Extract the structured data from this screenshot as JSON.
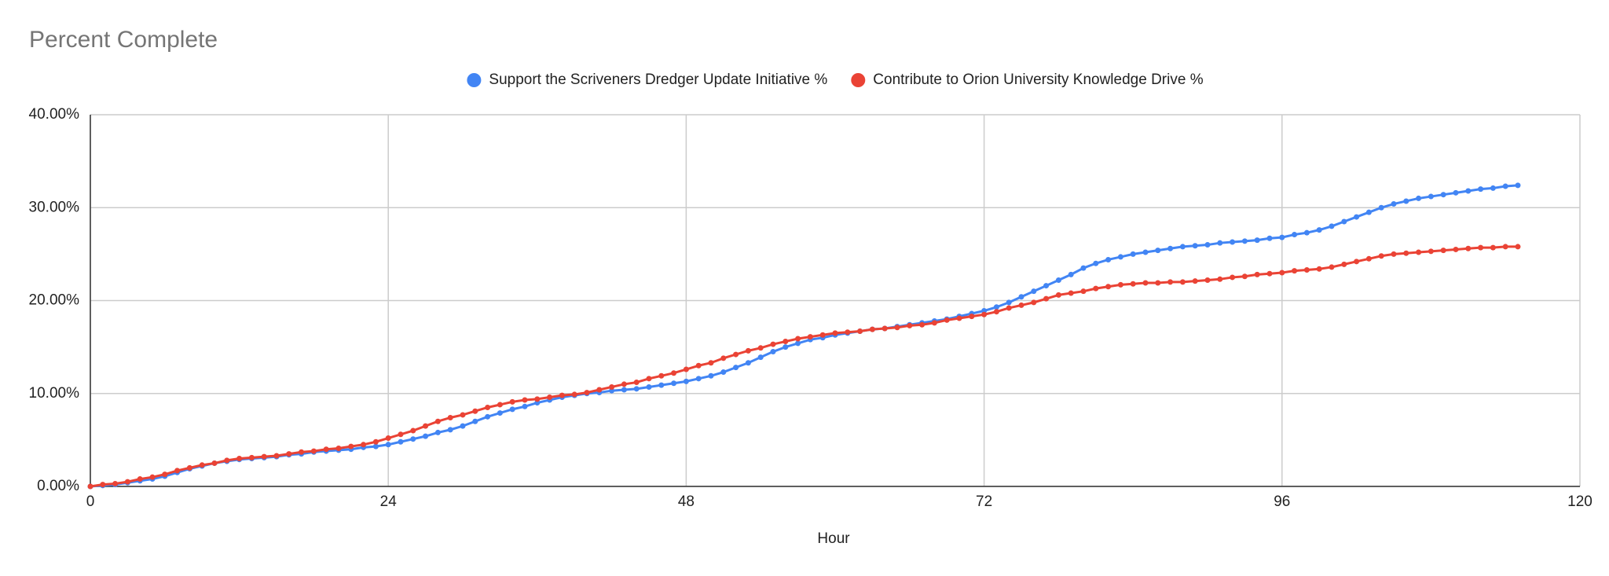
{
  "chart_data": {
    "type": "line",
    "title": "Percent Complete",
    "x_label": "Hour",
    "x": [
      0,
      1,
      2,
      3,
      4,
      5,
      6,
      7,
      8,
      9,
      10,
      11,
      12,
      13,
      14,
      15,
      16,
      17,
      18,
      19,
      20,
      21,
      22,
      23,
      24,
      25,
      26,
      27,
      28,
      29,
      30,
      31,
      32,
      33,
      34,
      35,
      36,
      37,
      38,
      39,
      40,
      41,
      42,
      43,
      44,
      45,
      46,
      47,
      48,
      49,
      50,
      51,
      52,
      53,
      54,
      55,
      56,
      57,
      58,
      59,
      60,
      61,
      62,
      63,
      64,
      65,
      66,
      67,
      68,
      69,
      70,
      71,
      72,
      73,
      74,
      75,
      76,
      77,
      78,
      79,
      80,
      81,
      82,
      83,
      84,
      85,
      86,
      87,
      88,
      89,
      90,
      91,
      92,
      93,
      94,
      95,
      96,
      97,
      98,
      99,
      100,
      101,
      102,
      103,
      104,
      105,
      106,
      107,
      108,
      109,
      110,
      111,
      112,
      113,
      114,
      115
    ],
    "series": [
      {
        "name": "Support the Scriveners Dredger Update Initiative %",
        "color": "#4285f4",
        "values": [
          0,
          0.1,
          0.2,
          0.4,
          0.6,
          0.8,
          1.1,
          1.5,
          1.9,
          2.2,
          2.5,
          2.7,
          2.9,
          3.0,
          3.1,
          3.2,
          3.4,
          3.5,
          3.7,
          3.8,
          3.9,
          4.0,
          4.2,
          4.3,
          4.5,
          4.8,
          5.1,
          5.4,
          5.8,
          6.1,
          6.5,
          7.0,
          7.5,
          7.9,
          8.3,
          8.6,
          9.0,
          9.3,
          9.6,
          9.8,
          10.0,
          10.1,
          10.3,
          10.4,
          10.5,
          10.7,
          10.9,
          11.1,
          11.3,
          11.6,
          11.9,
          12.3,
          12.8,
          13.3,
          13.9,
          14.5,
          15.0,
          15.4,
          15.8,
          16.0,
          16.3,
          16.5,
          16.7,
          16.9,
          17.0,
          17.2,
          17.4,
          17.6,
          17.8,
          18.0,
          18.3,
          18.6,
          18.9,
          19.3,
          19.8,
          20.4,
          21.0,
          21.6,
          22.2,
          22.8,
          23.5,
          24.0,
          24.4,
          24.7,
          25.0,
          25.2,
          25.4,
          25.6,
          25.8,
          25.9,
          26.0,
          26.2,
          26.3,
          26.4,
          26.5,
          26.7,
          26.8,
          27.1,
          27.3,
          27.6,
          28.0,
          28.5,
          29.0,
          29.5,
          30.0,
          30.4,
          30.7,
          31.0,
          31.2,
          31.4,
          31.6,
          31.8,
          32.0,
          32.1,
          32.3,
          32.4
        ]
      },
      {
        "name": "Contribute to Orion University Knowledge Drive %",
        "color": "#ea4335",
        "values": [
          0,
          0.2,
          0.3,
          0.5,
          0.8,
          1.0,
          1.3,
          1.7,
          2.0,
          2.3,
          2.5,
          2.8,
          3.0,
          3.1,
          3.2,
          3.3,
          3.5,
          3.7,
          3.8,
          4.0,
          4.1,
          4.3,
          4.5,
          4.8,
          5.2,
          5.6,
          6.0,
          6.5,
          7.0,
          7.4,
          7.7,
          8.1,
          8.5,
          8.8,
          9.1,
          9.3,
          9.4,
          9.6,
          9.8,
          9.9,
          10.1,
          10.4,
          10.7,
          11.0,
          11.2,
          11.6,
          11.9,
          12.2,
          12.6,
          13.0,
          13.3,
          13.8,
          14.2,
          14.6,
          14.9,
          15.3,
          15.6,
          15.9,
          16.1,
          16.3,
          16.5,
          16.6,
          16.7,
          16.9,
          17.0,
          17.1,
          17.3,
          17.4,
          17.6,
          17.9,
          18.1,
          18.3,
          18.5,
          18.8,
          19.2,
          19.5,
          19.8,
          20.2,
          20.6,
          20.8,
          21.0,
          21.3,
          21.5,
          21.7,
          21.8,
          21.9,
          21.9,
          22.0,
          22.0,
          22.1,
          22.2,
          22.3,
          22.5,
          22.6,
          22.8,
          22.9,
          23.0,
          23.2,
          23.3,
          23.4,
          23.6,
          23.9,
          24.2,
          24.5,
          24.8,
          25.0,
          25.1,
          25.2,
          25.3,
          25.4,
          25.5,
          25.6,
          25.7,
          25.7,
          25.8,
          25.8
        ]
      }
    ],
    "xlim": [
      0,
      120
    ],
    "xticks": [
      0,
      24,
      48,
      72,
      96,
      120
    ],
    "ylim": [
      0,
      40
    ],
    "yticks": [
      {
        "value": 0,
        "label": "0.00%"
      },
      {
        "value": 10,
        "label": "10.00%"
      },
      {
        "value": 20,
        "label": "20.00%"
      },
      {
        "value": 30,
        "label": "30.00%"
      },
      {
        "value": 40,
        "label": "40.00%"
      }
    ],
    "grid": true,
    "legend": "top"
  }
}
